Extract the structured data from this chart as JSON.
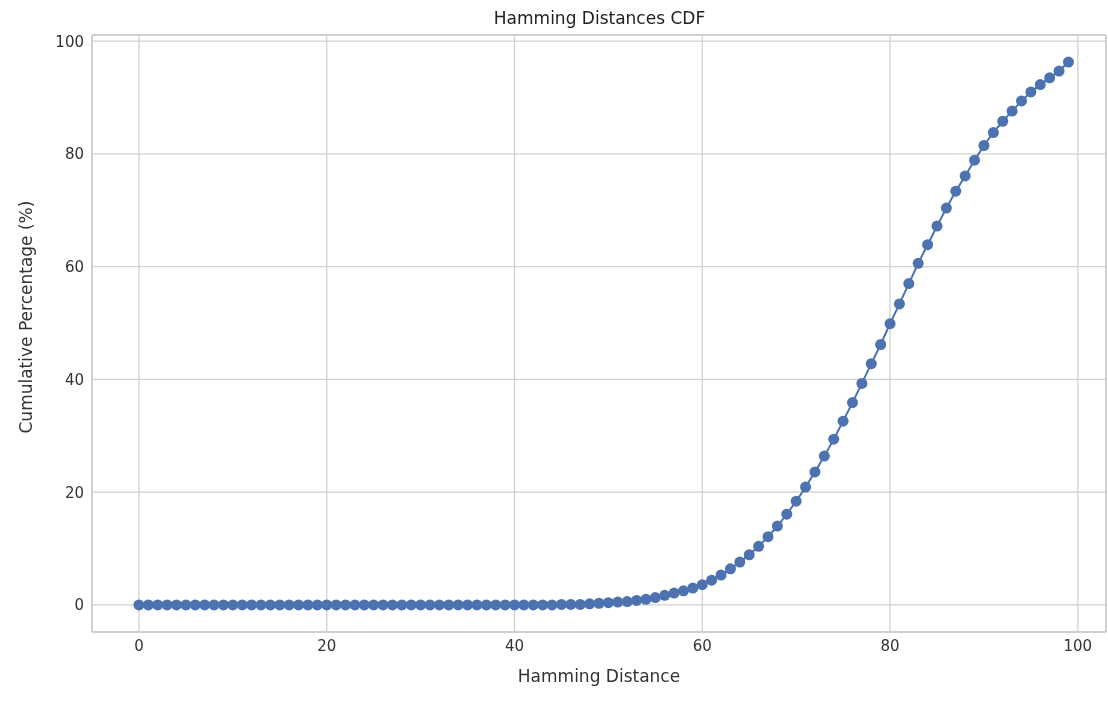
{
  "chart_data": {
    "type": "line",
    "title": "Hamming Distances CDF",
    "xlabel": "Hamming Distance",
    "ylabel": "Cumulative Percentage (%)",
    "x": [
      0,
      1,
      2,
      3,
      4,
      5,
      6,
      7,
      8,
      9,
      10,
      11,
      12,
      13,
      14,
      15,
      16,
      17,
      18,
      19,
      20,
      21,
      22,
      23,
      24,
      25,
      26,
      27,
      28,
      29,
      30,
      31,
      32,
      33,
      34,
      35,
      36,
      37,
      38,
      39,
      40,
      41,
      42,
      43,
      44,
      45,
      46,
      47,
      48,
      49,
      50,
      51,
      52,
      53,
      54,
      55,
      56,
      57,
      58,
      59,
      60,
      61,
      62,
      63,
      64,
      65,
      66,
      67,
      68,
      69,
      70,
      71,
      72,
      73,
      74,
      75,
      76,
      77,
      78,
      79,
      80,
      81,
      82,
      83,
      84,
      85,
      86,
      87,
      88,
      89,
      90,
      91,
      92,
      93,
      94,
      95,
      96,
      97,
      98,
      99
    ],
    "series": [
      {
        "color": "#4c72b0",
        "values": [
          0,
          0,
          0,
          0,
          0,
          0,
          0,
          0,
          0,
          0,
          0,
          0,
          0,
          0,
          0,
          0,
          0,
          0,
          0,
          0,
          0,
          0,
          0,
          0,
          0,
          0,
          0,
          0,
          0,
          0,
          0,
          0,
          0,
          0,
          0,
          0,
          0,
          0,
          0,
          0,
          0,
          0,
          0,
          0,
          0,
          0.1,
          0.1,
          0.1,
          0.2,
          0.3,
          0.4,
          0.5,
          0.6,
          0.8,
          1.0,
          1.3,
          1.7,
          2.1,
          2.5,
          3.0,
          3.6,
          4.4,
          5.3,
          6.4,
          7.6,
          8.9,
          10.4,
          12.1,
          14.0,
          16.1,
          18.4,
          20.9,
          23.6,
          26.4,
          29.4,
          32.6,
          35.9,
          39.3,
          42.8,
          46.2,
          49.9,
          53.4,
          57.0,
          60.6,
          63.9,
          67.2,
          70.4,
          73.4,
          76.1,
          78.9,
          81.5,
          83.8,
          85.8,
          87.6,
          89.4,
          91.0,
          92.3,
          93.5,
          94.7,
          96.3
        ]
      }
    ],
    "xlim": [
      -5,
      103
    ],
    "xticks": [
      0,
      20,
      40,
      60,
      80,
      100
    ],
    "ylim": [
      -4.8,
      101.1
    ],
    "yticks": [
      0,
      20,
      40,
      60,
      80,
      100
    ],
    "grid": true,
    "marker": "circle",
    "line_style": "solid"
  }
}
